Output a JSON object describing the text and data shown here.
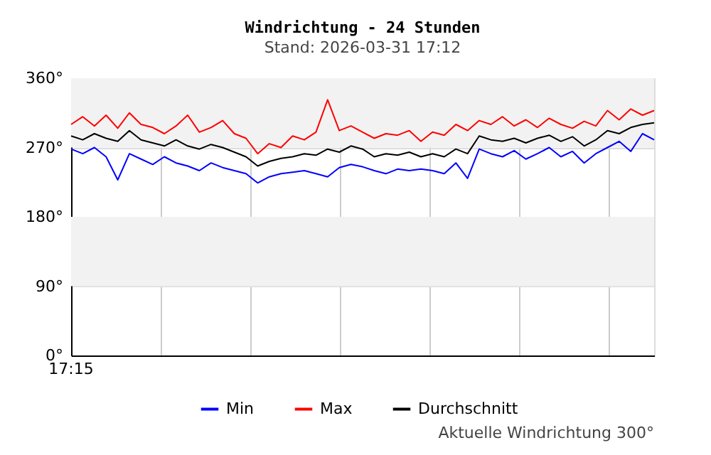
{
  "chart_data": {
    "type": "line",
    "title": "Windrichtung - 24 Stunden",
    "subtitle": "Stand: 2026-03-31 17:12",
    "categories": [
      null,
      null,
      null,
      null,
      null,
      null,
      null,
      null,
      null,
      null,
      null,
      null,
      null,
      null,
      null,
      null,
      null,
      null,
      null,
      null,
      null,
      null,
      null,
      null,
      null,
      null,
      null,
      null,
      null,
      null,
      null,
      null,
      null,
      null,
      null,
      null,
      null,
      null,
      null,
      null,
      null,
      null,
      null,
      null,
      null,
      null,
      null,
      null,
      null,
      null,
      null
    ],
    "series": [
      {
        "name": "Min",
        "color": "#0000ff",
        "values": [
          268,
          262,
          270,
          258,
          228,
          262,
          255,
          248,
          258,
          250,
          246,
          240,
          250,
          244,
          240,
          236,
          224,
          232,
          236,
          238,
          240,
          236,
          232,
          244,
          248,
          245,
          240,
          236,
          242,
          240,
          242,
          240,
          236,
          250,
          230,
          268,
          262,
          258,
          266,
          255,
          262,
          270,
          258,
          265,
          250,
          262,
          270,
          278,
          265,
          288,
          280
        ]
      },
      {
        "name": "Max",
        "color": "#ff0000",
        "values": [
          300,
          310,
          298,
          312,
          295,
          315,
          300,
          296,
          288,
          298,
          312,
          290,
          296,
          305,
          288,
          282,
          262,
          275,
          270,
          285,
          280,
          290,
          332,
          292,
          298,
          290,
          282,
          288,
          286,
          292,
          278,
          290,
          286,
          300,
          292,
          305,
          300,
          310,
          298,
          306,
          296,
          308,
          300,
          295,
          304,
          298,
          318,
          306,
          320,
          312,
          318
        ]
      },
      {
        "name": "Durchschnitt",
        "color": "#000000",
        "values": [
          285,
          280,
          288,
          282,
          278,
          292,
          280,
          276,
          272,
          280,
          272,
          268,
          274,
          270,
          264,
          258,
          246,
          252,
          256,
          258,
          262,
          260,
          268,
          264,
          272,
          268,
          258,
          262,
          260,
          264,
          258,
          262,
          258,
          268,
          262,
          285,
          280,
          278,
          282,
          276,
          282,
          286,
          278,
          284,
          272,
          280,
          292,
          288,
          296,
          300,
          302
        ]
      }
    ],
    "ylim": [
      0,
      360
    ],
    "yticks": [
      {
        "value": 0,
        "label": "0°"
      },
      {
        "value": 90,
        "label": "90°"
      },
      {
        "value": 180,
        "label": "180°"
      },
      {
        "value": 270,
        "label": "270°"
      },
      {
        "value": 360,
        "label": "360°"
      }
    ],
    "bands": [
      {
        "axis": "y",
        "from": 270,
        "to": 360,
        "color": "#f2f2f2"
      },
      {
        "axis": "y",
        "from": 90,
        "to": 180,
        "color": "#f2f2f2"
      }
    ],
    "grid": true,
    "legend": "bottom",
    "annotations": [
      "17:15",
      "Aktuelle Windrichtung 300°"
    ]
  }
}
